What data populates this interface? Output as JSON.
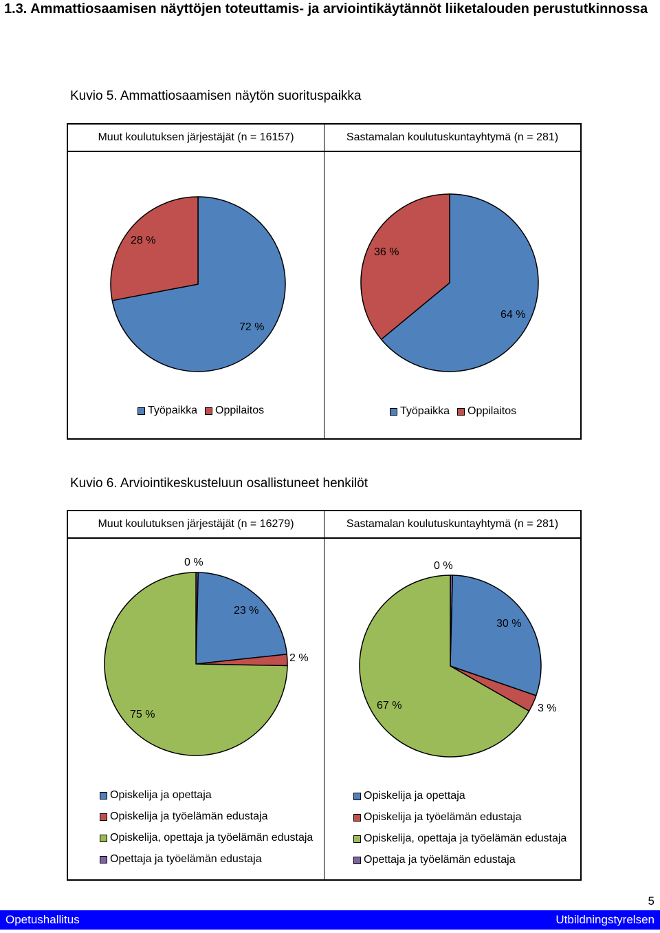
{
  "section_title": "1.3. Ammattiosaamisen näyttöjen toteuttamis- ja arviointikäytännöt liiketalouden perustutkinnossa",
  "page_number": "5",
  "footer": {
    "left": "Opetushallitus",
    "right": "Utbildningstyrelsen"
  },
  "colors": {
    "blue": "#4f81bd",
    "red": "#c0504d",
    "green": "#9bbb59",
    "purple": "#8064a2"
  },
  "chart_data": [
    {
      "type": "pie",
      "figure": "Kuvio 5. Ammattiosaamisen näytön suorituspaikka",
      "title": "Muut koulutuksen järjestäjät (n = 16157)",
      "categories": [
        "Työpaikka",
        "Oppilaitos"
      ],
      "values": [
        72,
        28
      ],
      "labels": [
        "72 %",
        "28 %"
      ],
      "colors": [
        "#4f81bd",
        "#c0504d"
      ],
      "legend": "bottom"
    },
    {
      "type": "pie",
      "figure": "Kuvio 5. Ammattiosaamisen näytön suorituspaikka",
      "title": "Sastamalan koulutuskuntayhtymä (n = 281)",
      "categories": [
        "Työpaikka",
        "Oppilaitos"
      ],
      "values": [
        64,
        36
      ],
      "labels": [
        "64 %",
        "36 %"
      ],
      "colors": [
        "#4f81bd",
        "#c0504d"
      ],
      "legend": "bottom"
    },
    {
      "type": "pie",
      "figure": "Kuvio 6. Arviointikeskusteluun osallistuneet henkilöt",
      "title": "Muut koulutuksen järjestäjät (n = 16279)",
      "categories": [
        "Opiskelija ja opettaja",
        "Opiskelija ja työelämän edustaja",
        "Opiskelija, opettaja ja työelämän edustaja",
        "Opettaja ja työelämän edustaja"
      ],
      "values": [
        23,
        2,
        75,
        0.4
      ],
      "labels": [
        "23 %",
        "2 %",
        "75 %",
        "0 %"
      ],
      "colors": [
        "#4f81bd",
        "#c0504d",
        "#9bbb59",
        "#8064a2"
      ],
      "legend": "bottom"
    },
    {
      "type": "pie",
      "figure": "Kuvio 6. Arviointikeskusteluun osallistuneet henkilöt",
      "title": "Sastamalan koulutuskuntayhtymä (n = 281)",
      "categories": [
        "Opiskelija ja opettaja",
        "Opiskelija ja työelämän edustaja",
        "Opiskelija, opettaja ja työelämän edustaja",
        "Opettaja ja työelämän edustaja"
      ],
      "values": [
        30,
        3,
        67,
        0.4
      ],
      "labels": [
        "30 %",
        "3 %",
        "67 %",
        "0 %"
      ],
      "colors": [
        "#4f81bd",
        "#c0504d",
        "#9bbb59",
        "#8064a2"
      ],
      "legend": "bottom"
    }
  ]
}
